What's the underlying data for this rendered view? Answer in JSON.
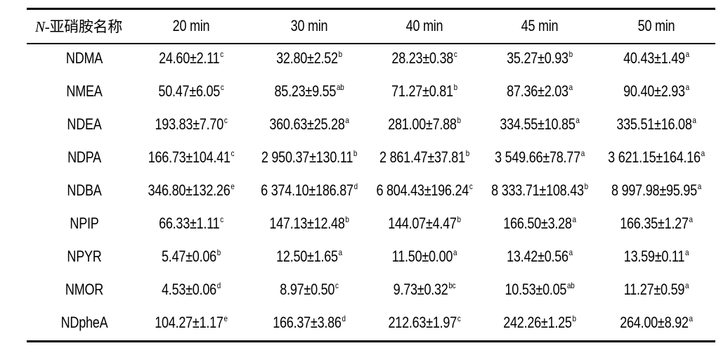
{
  "table": {
    "corner": {
      "italic": "N",
      "text": "-亚硝胺名称"
    },
    "columns": [
      "20 min",
      "30 min",
      "40 min",
      "45 min",
      "50 min"
    ],
    "rows": [
      {
        "name": "NDMA",
        "cells": [
          [
            "24.60±2.11",
            "c"
          ],
          [
            "32.80±2.52",
            "b"
          ],
          [
            "28.23±0.38",
            "c"
          ],
          [
            "35.27±0.93",
            "b"
          ],
          [
            "40.43±1.49",
            "a"
          ]
        ]
      },
      {
        "name": "NMEA",
        "cells": [
          [
            "50.47±6.05",
            "c"
          ],
          [
            "85.23±9.55",
            "ab"
          ],
          [
            "71.27±0.81",
            "b"
          ],
          [
            "87.36±2.03",
            "a"
          ],
          [
            "90.40±2.93",
            "a"
          ]
        ]
      },
      {
        "name": "NDEA",
        "cells": [
          [
            "193.83±7.70",
            "c"
          ],
          [
            "360.63±25.28",
            "a"
          ],
          [
            "281.00±7.88",
            "b"
          ],
          [
            "334.55±10.85",
            "a"
          ],
          [
            "335.51±16.08",
            "a"
          ]
        ]
      },
      {
        "name": "NDPA",
        "cells": [
          [
            "166.73±104.41",
            "c"
          ],
          [
            "2 950.37±130.11",
            "b"
          ],
          [
            "2 861.47±37.81",
            "b"
          ],
          [
            "3 549.66±78.77",
            "a"
          ],
          [
            "3 621.15±164.16",
            "a"
          ]
        ]
      },
      {
        "name": "NDBA",
        "cells": [
          [
            "346.80±132.26",
            "e"
          ],
          [
            "6 374.10±186.87",
            "d"
          ],
          [
            "6 804.43±196.24",
            "c"
          ],
          [
            "8 333.71±108.43",
            "b"
          ],
          [
            "8 997.98±95.95",
            "a"
          ]
        ]
      },
      {
        "name": "NPIP",
        "cells": [
          [
            "66.33±1.11",
            "c"
          ],
          [
            "147.13±12.48",
            "b"
          ],
          [
            "144.07±4.47",
            "b"
          ],
          [
            "166.50±3.28",
            "a"
          ],
          [
            "166.35±1.27",
            "a"
          ]
        ]
      },
      {
        "name": "NPYR",
        "cells": [
          [
            "5.47±0.06",
            "b"
          ],
          [
            "12.50±1.65",
            "a"
          ],
          [
            "11.50±0.00",
            "a"
          ],
          [
            "13.42±0.56",
            "a"
          ],
          [
            "13.59±0.11",
            "a"
          ]
        ]
      },
      {
        "name": "NMOR",
        "cells": [
          [
            "4.53±0.06",
            "d"
          ],
          [
            "8.97±0.50",
            "c"
          ],
          [
            "9.73±0.32",
            "bc"
          ],
          [
            "10.53±0.05",
            "ab"
          ],
          [
            "11.27±0.59",
            "a"
          ]
        ]
      },
      {
        "name": "NDpheA",
        "cells": [
          [
            "104.27±1.17",
            "e"
          ],
          [
            "166.37±3.86",
            "d"
          ],
          [
            "212.63±1.97",
            "c"
          ],
          [
            "242.26±1.25",
            "b"
          ],
          [
            "264.00±8.92",
            "a"
          ]
        ]
      }
    ]
  }
}
